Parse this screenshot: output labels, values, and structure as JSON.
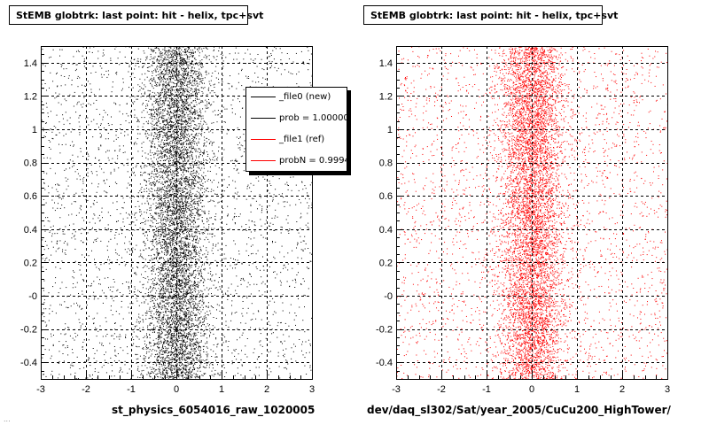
{
  "panels": [
    {
      "title": "StEMB globtrk: last point: hit - helix, tpc+svt",
      "xlabel": "st_physics_6054016_raw_1020005",
      "color": "#000000",
      "seed": 12345
    },
    {
      "title": "StEMB globtrk: last point: hit - helix, tpc+svt",
      "xlabel": "dev/daq_sl302/Sat/year_2005/CuCu200_HighTower/",
      "color": "#ff0000",
      "seed": 67890
    }
  ],
  "legend": {
    "entries": [
      {
        "label": "_file0 (new)",
        "color": "#000000"
      },
      {
        "label": "prob = 1.000000",
        "color": "#000000"
      },
      {
        "label": "_file1 (ref)",
        "color": "#ff0000"
      },
      {
        "label": "probN = 0.99948",
        "color": "#ff0000"
      }
    ]
  },
  "footer_stamp": "...",
  "chart_data": [
    {
      "type": "scatter",
      "title": "StEMB globtrk: last point: hit - helix, tpc+svt",
      "xlabel": "st_physics_6054016_raw_1020005",
      "ylabel": "",
      "xlim": [
        -3,
        3
      ],
      "ylim": [
        -0.5,
        1.5
      ],
      "xticks": [
        "-3",
        "-2",
        "-1",
        "0",
        "1",
        "2",
        "3"
      ],
      "yticks": [
        "-0.4",
        "-0.2",
        "-0",
        "0.2",
        "0.4",
        "0.6",
        "0.8",
        "1",
        "1.2",
        "1.4"
      ],
      "grid": true,
      "distribution": {
        "x_center": 0.0,
        "x_core_width": 0.35,
        "y_range": [
          -0.5,
          1.5
        ]
      },
      "series": [
        {
          "color": "#000000"
        }
      ]
    },
    {
      "type": "scatter",
      "title": "StEMB globtrk: last point: hit - helix, tpc+svt",
      "xlabel": "dev/daq_sl302/Sat/year_2005/CuCu200_HighTower/",
      "ylabel": "",
      "xlim": [
        -3,
        3
      ],
      "ylim": [
        -0.5,
        1.5
      ],
      "xticks": [
        "-3",
        "-2",
        "-1",
        "0",
        "1",
        "2",
        "3"
      ],
      "yticks": [
        "-0.4",
        "-0.2",
        "-0",
        "0.2",
        "0.4",
        "0.6",
        "0.8",
        "1",
        "1.2",
        "1.4"
      ],
      "grid": true,
      "distribution": {
        "x_center": 0.0,
        "x_core_width": 0.35,
        "y_range": [
          -0.5,
          1.5
        ]
      },
      "series": [
        {
          "color": "#ff0000"
        }
      ]
    }
  ]
}
